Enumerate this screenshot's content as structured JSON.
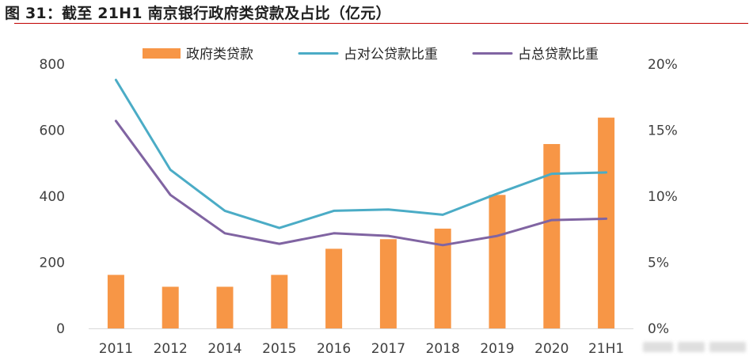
{
  "figure_title": "图 31：截至 21H1 南京银行政府类贷款及占比（亿元）",
  "chart_data": {
    "type": "bar+line",
    "title": "",
    "categories": [
      "2011",
      "2012",
      "2014",
      "2015",
      "2016",
      "2017",
      "2018",
      "2019",
      "2020",
      "21H1"
    ],
    "bar_series": {
      "name": "政府类贷款",
      "color": "#f79646",
      "axis": "left",
      "values": [
        162,
        126,
        126,
        162,
        241,
        270,
        302,
        404,
        558,
        638
      ]
    },
    "line_series": [
      {
        "name": "占对公贷款比重",
        "color": "#4bacc6",
        "axis": "right",
        "values": [
          0.188,
          0.12,
          0.089,
          0.076,
          0.089,
          0.09,
          0.086,
          0.102,
          0.117,
          0.118
        ]
      },
      {
        "name": "占总贷款比重",
        "color": "#8064a2",
        "axis": "right",
        "values": [
          0.157,
          0.101,
          0.072,
          0.064,
          0.072,
          0.07,
          0.063,
          0.07,
          0.082,
          0.083
        ]
      }
    ],
    "y_left": {
      "min": 0,
      "max": 800,
      "ticks": [
        "0",
        "200",
        "400",
        "600",
        "800"
      ]
    },
    "y_right": {
      "min": 0,
      "max": 0.2,
      "ticks": [
        "0%",
        "5%",
        "10%",
        "15%",
        "20%"
      ]
    },
    "grid": false,
    "legend_position": "top"
  }
}
